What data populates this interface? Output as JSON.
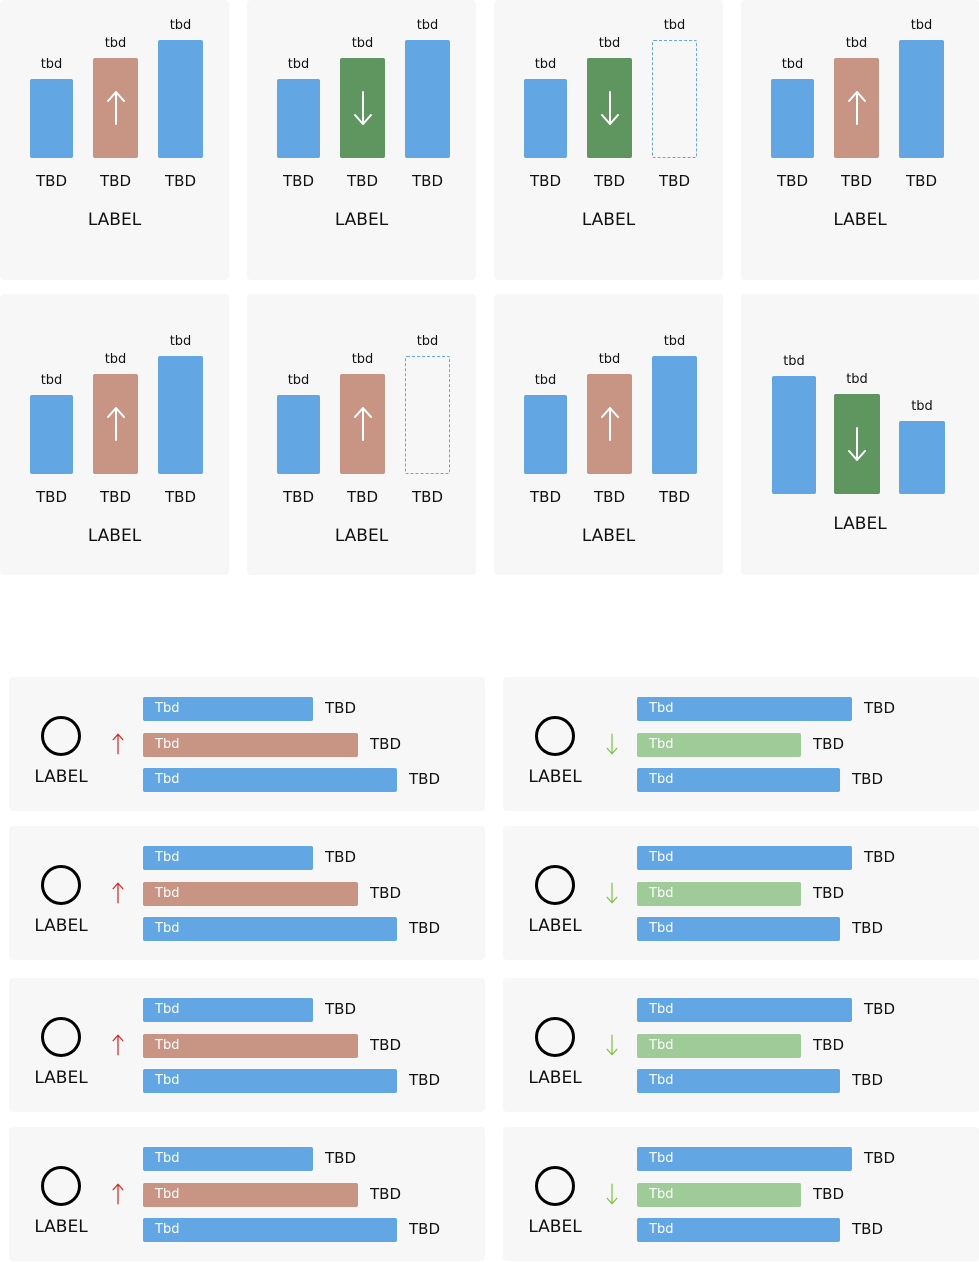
{
  "colors": {
    "blue": "#63a6e4",
    "red": "#c89585",
    "green": "#5f955e",
    "light_green": "#9fcb98",
    "card_bg": "#f7f7f7",
    "up_arrow": "#e02020",
    "down_arrow": "#7fc241"
  },
  "top_cards": [
    {
      "label": "LABEL",
      "bars": [
        {
          "top": "tbd",
          "cat": "TBD",
          "style": "blue"
        },
        {
          "top": "tbd",
          "cat": "TBD",
          "style": "red",
          "icon": "arrow-up-icon"
        },
        {
          "top": "tbd",
          "cat": "TBD",
          "style": "blue"
        }
      ]
    },
    {
      "label": "LABEL",
      "bars": [
        {
          "top": "tbd",
          "cat": "TBD",
          "style": "blue"
        },
        {
          "top": "tbd",
          "cat": "TBD",
          "style": "green",
          "icon": "arrow-down-icon"
        },
        {
          "top": "tbd",
          "cat": "TBD",
          "style": "blue"
        }
      ]
    },
    {
      "label": "LABEL",
      "bars": [
        {
          "top": "tbd",
          "cat": "TBD",
          "style": "blue"
        },
        {
          "top": "tbd",
          "cat": "TBD",
          "style": "green",
          "icon": "arrow-down-icon"
        },
        {
          "top": "tbd",
          "cat": "TBD",
          "style": "ghost"
        }
      ]
    },
    {
      "label": "LABEL",
      "bars": [
        {
          "top": "tbd",
          "cat": "TBD",
          "style": "blue"
        },
        {
          "top": "tbd",
          "cat": "TBD",
          "style": "red",
          "icon": "arrow-up-icon"
        },
        {
          "top": "tbd",
          "cat": "TBD",
          "style": "blue"
        }
      ]
    },
    {
      "label": "LABEL",
      "bars": [
        {
          "top": "tbd",
          "cat": "TBD",
          "style": "blue"
        },
        {
          "top": "tbd",
          "cat": "TBD",
          "style": "red",
          "icon": "arrow-up-icon"
        },
        {
          "top": "tbd",
          "cat": "TBD",
          "style": "blue"
        }
      ]
    },
    {
      "label": "LABEL",
      "bars": [
        {
          "top": "tbd",
          "cat": "TBD",
          "style": "blue"
        },
        {
          "top": "tbd",
          "cat": "TBD",
          "style": "red",
          "icon": "arrow-up-icon"
        },
        {
          "top": "tbd",
          "cat": "TBD",
          "style": "ghost"
        }
      ]
    },
    {
      "label": "LABEL",
      "bars": [
        {
          "top": "tbd",
          "cat": "TBD",
          "style": "blue"
        },
        {
          "top": "tbd",
          "cat": "TBD",
          "style": "red",
          "icon": "arrow-up-icon"
        },
        {
          "top": "tbd",
          "cat": "TBD",
          "style": "blue"
        }
      ]
    },
    {
      "label": "LABEL",
      "bars": [
        {
          "top": "tbd",
          "cat": "",
          "style": "blue"
        },
        {
          "top": "tbd",
          "cat": "",
          "style": "green",
          "icon": "arrow-down-icon"
        },
        {
          "top": "tbd",
          "cat": "",
          "style": "blue"
        }
      ]
    }
  ],
  "bottom_cards": [
    {
      "label": "LABEL",
      "trend": "up",
      "bars": [
        {
          "text": "Tbd",
          "value": "TBD",
          "style": "blue"
        },
        {
          "text": "Tbd",
          "value": "TBD",
          "style": "red"
        },
        {
          "text": "Tbd",
          "value": "TBD",
          "style": "blue"
        }
      ]
    },
    {
      "label": "LABEL",
      "trend": "down",
      "bars": [
        {
          "text": "Tbd",
          "value": "TBD",
          "style": "blue"
        },
        {
          "text": "Tbd",
          "value": "TBD",
          "style": "lgreen"
        },
        {
          "text": "Tbd",
          "value": "TBD",
          "style": "blue"
        }
      ]
    },
    {
      "label": "LABEL",
      "trend": "up",
      "bars": [
        {
          "text": "Tbd",
          "value": "TBD",
          "style": "blue"
        },
        {
          "text": "Tbd",
          "value": "TBD",
          "style": "red"
        },
        {
          "text": "Tbd",
          "value": "TBD",
          "style": "blue"
        }
      ]
    },
    {
      "label": "LABEL",
      "trend": "down",
      "bars": [
        {
          "text": "Tbd",
          "value": "TBD",
          "style": "blue"
        },
        {
          "text": "Tbd",
          "value": "TBD",
          "style": "lgreen"
        },
        {
          "text": "Tbd",
          "value": "TBD",
          "style": "blue"
        }
      ]
    },
    {
      "label": "LABEL",
      "trend": "up",
      "bars": [
        {
          "text": "Tbd",
          "value": "TBD",
          "style": "blue"
        },
        {
          "text": "Tbd",
          "value": "TBD",
          "style": "red"
        },
        {
          "text": "Tbd",
          "value": "TBD",
          "style": "blue"
        }
      ]
    },
    {
      "label": "LABEL",
      "trend": "down",
      "bars": [
        {
          "text": "Tbd",
          "value": "TBD",
          "style": "blue"
        },
        {
          "text": "Tbd",
          "value": "TBD",
          "style": "lgreen"
        },
        {
          "text": "Tbd",
          "value": "TBD",
          "style": "blue"
        }
      ]
    },
    {
      "label": "LABEL",
      "trend": "up",
      "bars": [
        {
          "text": "Tbd",
          "value": "TBD",
          "style": "blue"
        },
        {
          "text": "Tbd",
          "value": "TBD",
          "style": "red"
        },
        {
          "text": "Tbd",
          "value": "TBD",
          "style": "blue"
        }
      ]
    },
    {
      "label": "LABEL",
      "trend": "down",
      "bars": [
        {
          "text": "Tbd",
          "value": "TBD",
          "style": "blue"
        },
        {
          "text": "Tbd",
          "value": "TBD",
          "style": "lgreen"
        },
        {
          "text": "Tbd",
          "value": "TBD",
          "style": "blue"
        }
      ]
    }
  ]
}
